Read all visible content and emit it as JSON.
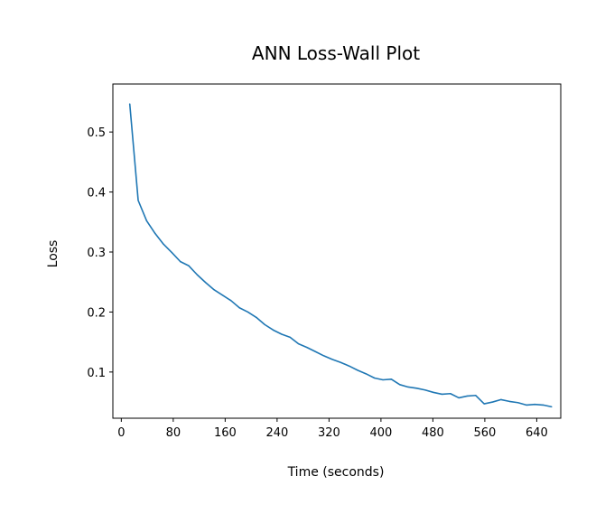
{
  "chart_data": {
    "type": "line",
    "title": "ANN Loss-Wall Plot",
    "xlabel": "Time (seconds)",
    "ylabel": "Loss",
    "xlim": [
      -13,
      677
    ],
    "ylim": [
      0.023,
      0.58
    ],
    "x_ticks": [
      0,
      80,
      160,
      240,
      320,
      400,
      480,
      560,
      640
    ],
    "y_ticks": [
      0.1,
      0.2,
      0.3,
      0.4,
      0.5
    ],
    "y_tick_labels": [
      "0.1",
      "0.2",
      "0.3",
      "0.4",
      "0.5"
    ],
    "grid": false,
    "series": [
      {
        "color": "#1f77b4",
        "x": [
          13,
          26,
          39,
          52,
          65,
          78,
          91,
          104,
          117,
          130,
          143,
          156,
          169,
          182,
          195,
          208,
          221,
          234,
          247,
          260,
          273,
          286,
          299,
          312,
          325,
          338,
          351,
          364,
          377,
          390,
          403,
          416,
          429,
          442,
          455,
          468,
          481,
          494,
          507,
          520,
          533,
          546,
          559,
          572,
          585,
          598,
          611,
          624,
          637,
          650,
          663
        ],
        "y": [
          0.547,
          0.386,
          0.352,
          0.331,
          0.313,
          0.299,
          0.284,
          0.277,
          0.262,
          0.249,
          0.237,
          0.228,
          0.219,
          0.207,
          0.2,
          0.191,
          0.179,
          0.17,
          0.163,
          0.158,
          0.147,
          0.141,
          0.134,
          0.127,
          0.121,
          0.116,
          0.11,
          0.103,
          0.097,
          0.09,
          0.087,
          0.088,
          0.079,
          0.075,
          0.073,
          0.07,
          0.066,
          0.063,
          0.064,
          0.057,
          0.06,
          0.061,
          0.047,
          0.05,
          0.054,
          0.051,
          0.049,
          0.045,
          0.046,
          0.045,
          0.042
        ]
      }
    ]
  },
  "colors": {
    "line": "#1f77b4",
    "axes": "#000000",
    "background": "#ffffff"
  }
}
